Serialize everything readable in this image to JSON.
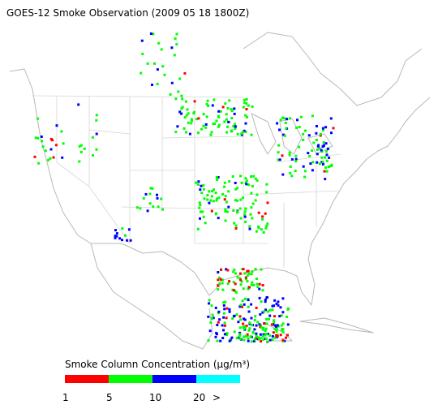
{
  "title": "GOES-12 Smoke Observation (2009 05 18  1800Z)",
  "legend": {
    "label": "Smoke Column Concentration (μg/m³)",
    "colors": [
      "#ff0000",
      "#00ff00",
      "#0000ff",
      "#00ffff"
    ],
    "ticks": [
      "1",
      "5",
      "10",
      "20",
      ">"
    ]
  }
}
